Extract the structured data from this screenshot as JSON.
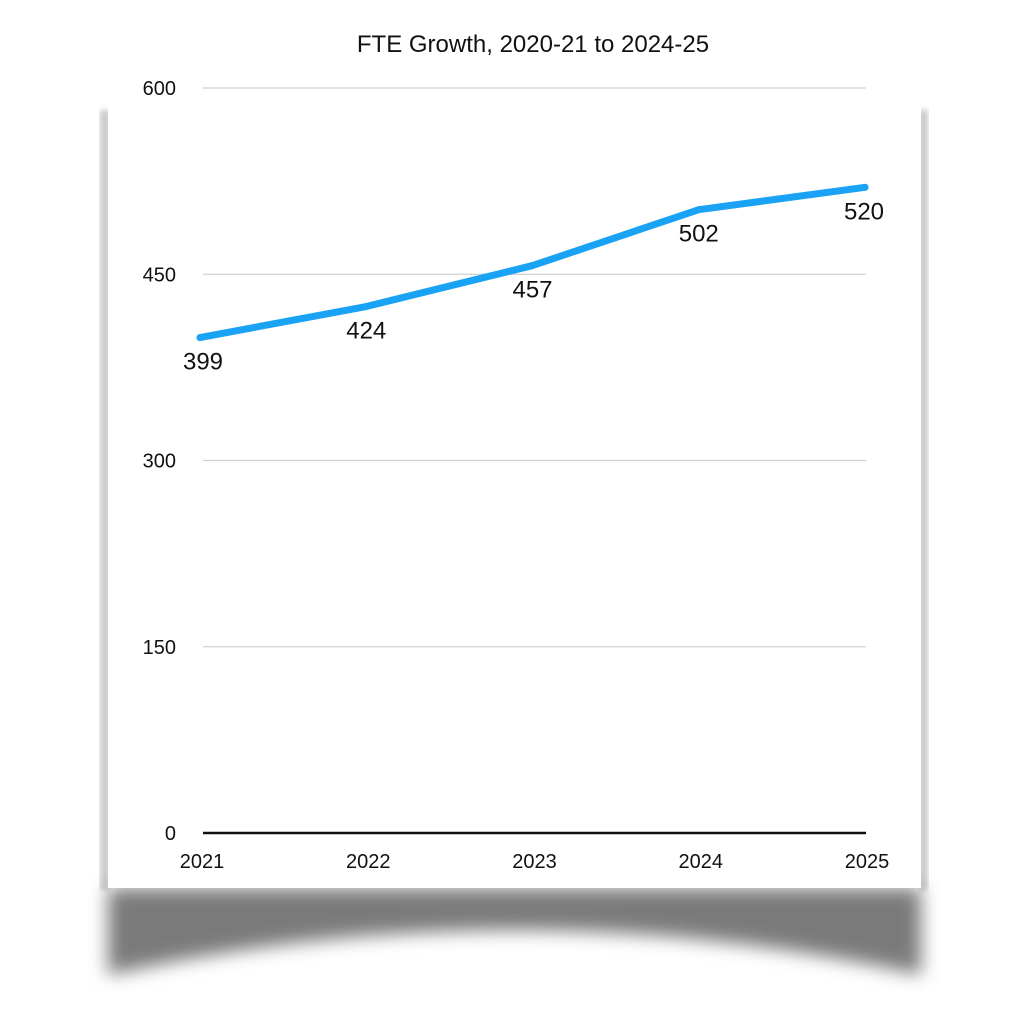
{
  "chart_data": {
    "type": "line",
    "title": "FTE Growth, 2020-21 to 2024-25",
    "xlabel": "",
    "ylabel": "",
    "categories": [
      "2021",
      "2022",
      "2023",
      "2024",
      "2025"
    ],
    "series": [
      {
        "values": [
          399,
          424,
          457,
          502,
          520
        ],
        "color": "#1aa3f5"
      }
    ],
    "data_labels": [
      "399",
      "424",
      "457",
      "502",
      "520"
    ],
    "ylim": [
      0,
      600
    ],
    "yticks": [
      0,
      150,
      300,
      450,
      600
    ],
    "ytick_labels": [
      "0",
      "150",
      "300",
      "450",
      "600"
    ],
    "grid": true,
    "legend": "none",
    "colors": {
      "line": "#1aa3f5",
      "grid": "#d0d0d0",
      "baseline": "#111111",
      "paper": "#ffffff",
      "shadow": "#7a7a7a"
    }
  }
}
